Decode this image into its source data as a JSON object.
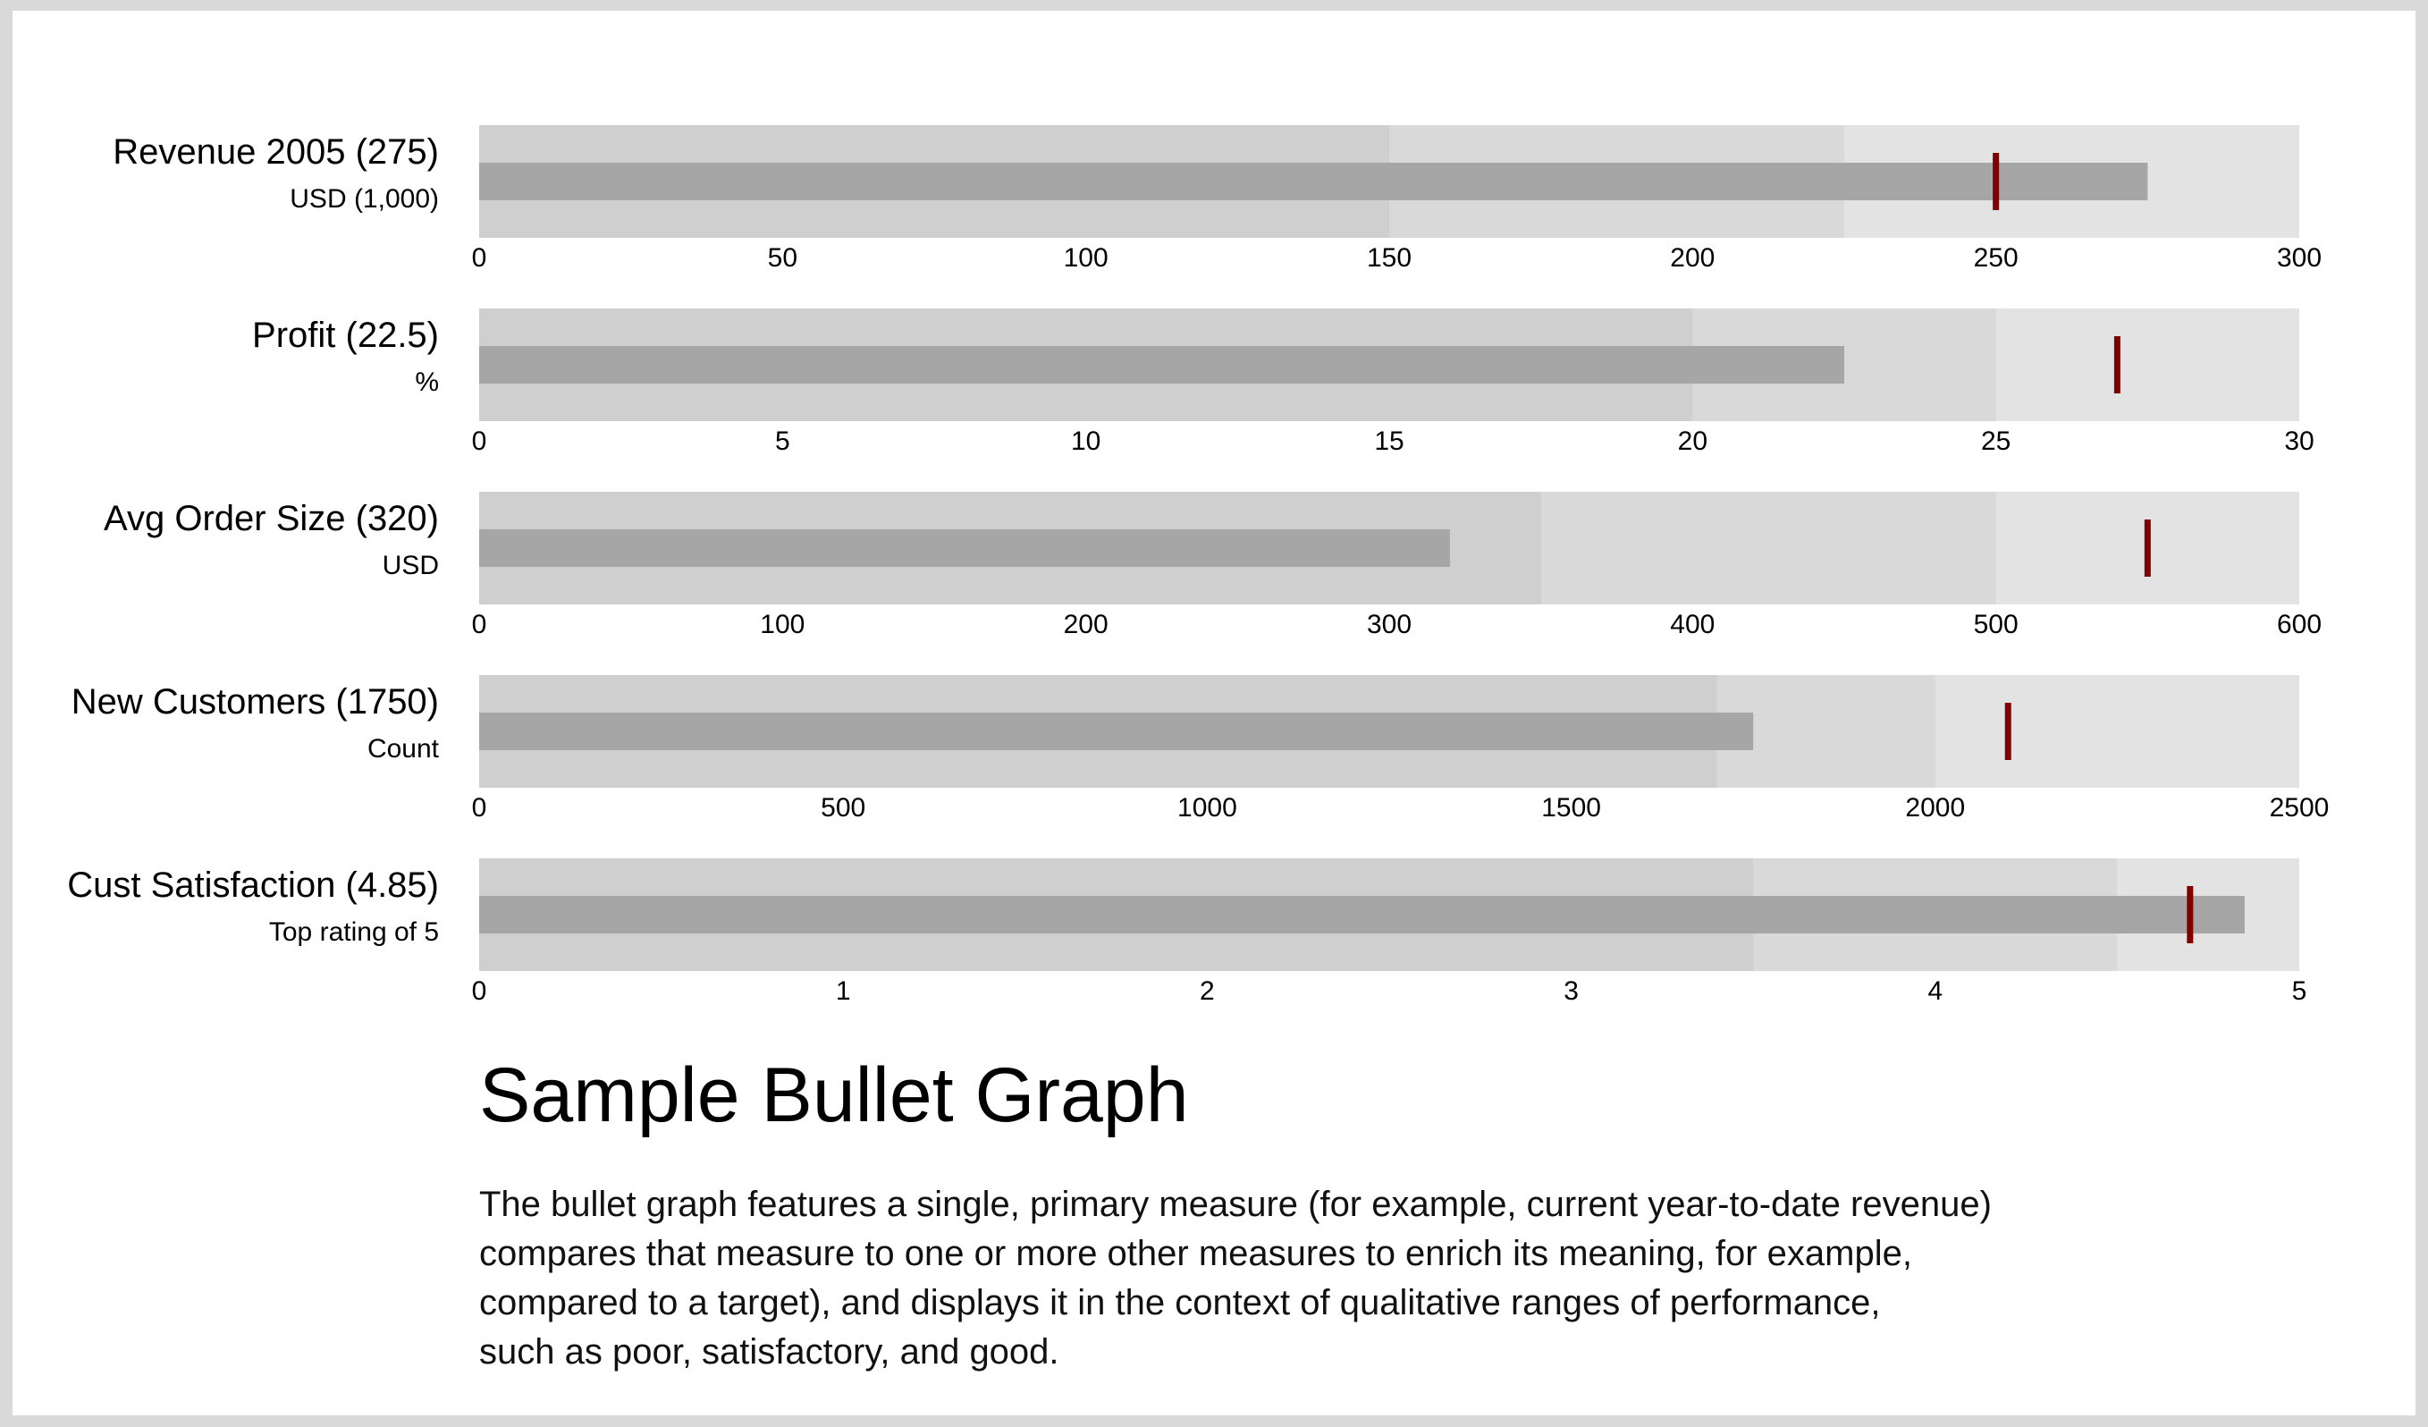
{
  "title": "Sample Bullet Graph",
  "description_lines": [
    "The bullet graph features a single, primary measure (for example, current year-to-date revenue)",
    "compares that measure to one or more other measures to enrich its meaning, for example,",
    "compared to a target), and displays it in the context of qualitative ranges of performance,",
    "such as poor, satisfactory, and good."
  ],
  "colors": {
    "range_dark": "#cfcfcf",
    "range_mid": "#d9d9d9",
    "range_light": "#e3e3e3",
    "measure": "#a6a6a6",
    "marker": "#800000"
  },
  "chart_data": {
    "type": "bullet",
    "title": "Sample Bullet Graph",
    "bullets": [
      {
        "label": "Revenue 2005 (275)",
        "sublabel": "USD (1,000)",
        "value": 275,
        "target": 250,
        "ranges": [
          150,
          225,
          300
        ],
        "xlim": [
          0,
          300
        ],
        "ticks": [
          0,
          50,
          100,
          150,
          200,
          250,
          300
        ],
        "tick_labels": [
          "0",
          "50",
          "100",
          "150",
          "200",
          "250",
          "300"
        ]
      },
      {
        "label": "Profit (22.5)",
        "sublabel": "%",
        "value": 22.5,
        "target": 27,
        "ranges": [
          20,
          25,
          30
        ],
        "xlim": [
          0,
          30
        ],
        "ticks": [
          0,
          5,
          10,
          15,
          20,
          25,
          30
        ],
        "tick_labels": [
          "0",
          "5",
          "10",
          "15",
          "20",
          "25",
          "30"
        ]
      },
      {
        "label": "Avg Order Size (320)",
        "sublabel": "USD",
        "value": 320,
        "target": 550,
        "ranges": [
          350,
          500,
          600
        ],
        "xlim": [
          0,
          600
        ],
        "ticks": [
          0,
          100,
          200,
          300,
          400,
          500,
          600
        ],
        "tick_labels": [
          "0",
          "100",
          "200",
          "300",
          "400",
          "500",
          "600"
        ]
      },
      {
        "label": "New Customers (1750)",
        "sublabel": "Count",
        "value": 1750,
        "target": 2100,
        "ranges": [
          1700,
          2000,
          2500
        ],
        "xlim": [
          0,
          2500
        ],
        "ticks": [
          0,
          500,
          1000,
          1500,
          2000,
          2500
        ],
        "tick_labels": [
          "0",
          "500",
          "1000",
          "1500",
          "2000",
          "2500"
        ]
      },
      {
        "label": "Cust Satisfaction (4.85)",
        "sublabel": "Top rating of 5",
        "value": 4.85,
        "target": 4.7,
        "ranges": [
          3.5,
          4.5,
          5
        ],
        "xlim": [
          0,
          5
        ],
        "ticks": [
          0,
          1,
          2,
          3,
          4,
          5
        ],
        "tick_labels": [
          "0",
          "1",
          "2",
          "3",
          "4",
          "5"
        ]
      }
    ]
  }
}
